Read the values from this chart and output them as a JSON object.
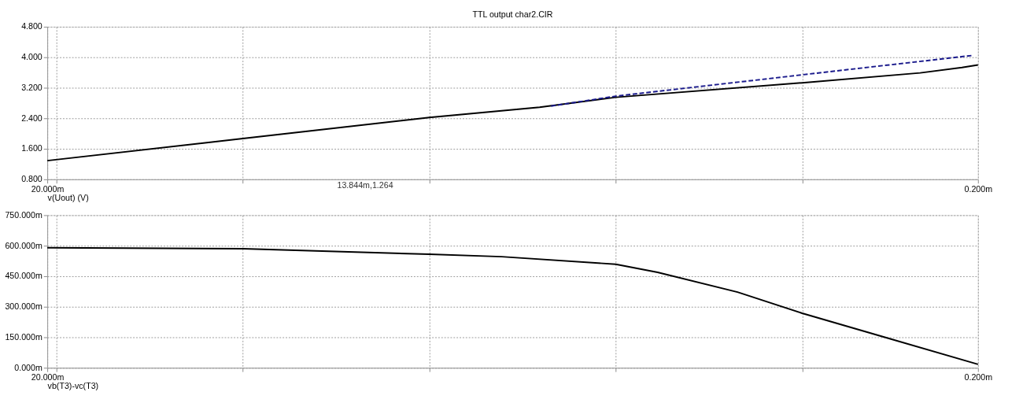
{
  "chart_data": [
    {
      "type": "line",
      "title": "TTL output char2.CIR",
      "xlabel": "v(Uout) (V)",
      "xlim": [
        20,
        0.2
      ],
      "xticks": [
        {
          "value": 20,
          "label": "20.000m"
        },
        {
          "value": 19.8,
          "label": null
        },
        {
          "value": 15.84,
          "label": null
        },
        {
          "value": 11.87,
          "label": null
        },
        {
          "value": 7.91,
          "label": null
        },
        {
          "value": 3.94,
          "label": null
        },
        {
          "value": 0.2,
          "label": "0.200m"
        }
      ],
      "ylim": [
        0.8,
        4.8
      ],
      "yticks": [
        {
          "value": 0.8,
          "label": "0.800"
        },
        {
          "value": 1.6,
          "label": "1.600"
        },
        {
          "value": 2.4,
          "label": "2.400"
        },
        {
          "value": 3.2,
          "label": "3.200"
        },
        {
          "value": 4.0,
          "label": "4.000"
        },
        {
          "value": 4.8,
          "label": "4.800"
        }
      ],
      "grid": true,
      "annotations": [
        "13.844m,1.264"
      ],
      "series": [
        {
          "color": "#000000",
          "line_style": "solid",
          "x": [
            20,
            15.839,
            11.873,
            9.525,
            7.906,
            3.94,
            1.431,
            0.54,
            0.2
          ],
          "values": [
            1.29,
            1.87,
            2.42,
            2.69,
            2.95,
            3.33,
            3.59,
            3.73,
            3.8
          ]
        },
        {
          "color": "#1a1a8c",
          "line_style": "dashed",
          "x": [
            9.282,
            7.906,
            3.94,
            0.297
          ],
          "values": [
            2.72,
            2.98,
            3.54,
            4.05
          ]
        }
      ]
    },
    {
      "type": "line",
      "xlabel": "vb(T3)-vc(T3)",
      "xlim": [
        20,
        0.2
      ],
      "xticks": [
        {
          "value": 20,
          "label": "20.000m"
        },
        {
          "value": 19.8,
          "label": null
        },
        {
          "value": 15.84,
          "label": null
        },
        {
          "value": 11.87,
          "label": null
        },
        {
          "value": 7.91,
          "label": null
        },
        {
          "value": 3.94,
          "label": null
        },
        {
          "value": 0.2,
          "label": "0.200m"
        }
      ],
      "ylim": [
        0,
        750
      ],
      "yticks": [
        {
          "value": 0,
          "label": "0.000m"
        },
        {
          "value": 150,
          "label": "150.000m"
        },
        {
          "value": 300,
          "label": "300.000m"
        },
        {
          "value": 450,
          "label": "450.000m"
        },
        {
          "value": 600,
          "label": "600.000m"
        },
        {
          "value": 750,
          "label": "750.000m"
        }
      ],
      "grid": true,
      "series": [
        {
          "color": "#000000",
          "line_style": "solid",
          "x": [
            20,
            15.839,
            11.873,
            10.335,
            7.906,
            7.016,
            5.316,
            3.94,
            2.24,
            0.2
          ],
          "values": [
            590,
            585,
            558,
            546,
            509,
            469,
            372,
            268,
            154,
            17
          ]
        }
      ]
    }
  ]
}
